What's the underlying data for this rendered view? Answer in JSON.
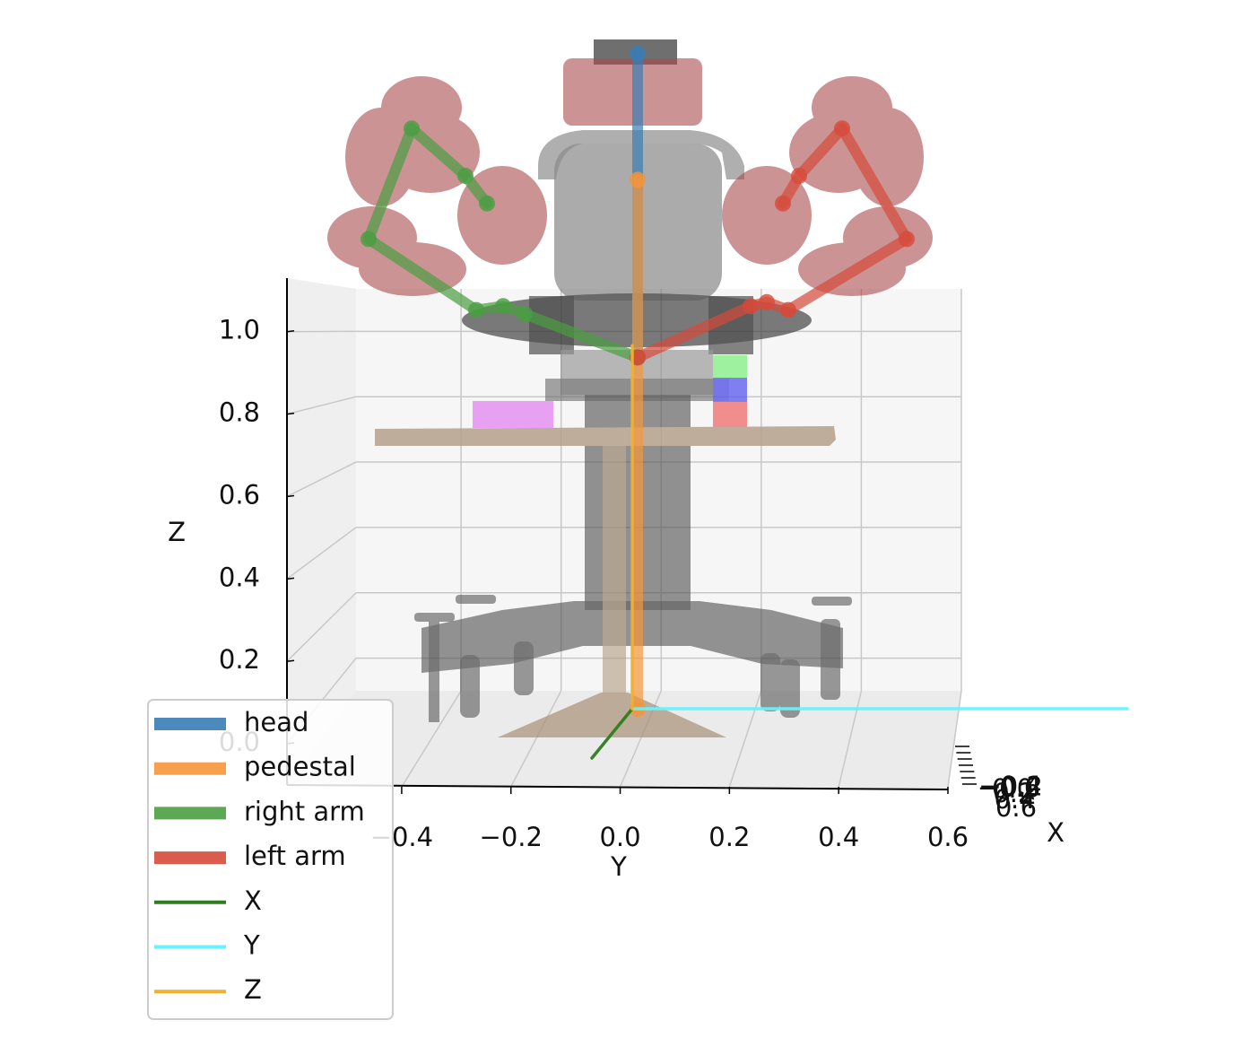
{
  "chart_data": {
    "type": "line3d",
    "xlabel": "X",
    "ylabel": "Y",
    "zlabel": "Z",
    "xlim": [
      -0.6,
      0.6
    ],
    "ylim": [
      -0.61,
      0.6
    ],
    "zlim": [
      -0.1,
      1.13
    ],
    "xticks": [
      {
        "value": -0.6,
        "label": "−0.6"
      },
      {
        "value": -0.4,
        "label": "−0.4"
      },
      {
        "value": -0.2,
        "label": "−0.2"
      },
      {
        "value": 0,
        "label": "0.0"
      },
      0.2,
      0.4,
      0.6
    ],
    "yticks": [
      {
        "value": -0.4,
        "label": "−0.4"
      },
      {
        "value": -0.2,
        "label": "−0.2"
      },
      {
        "value": 0,
        "label": "0.0"
      },
      0.2,
      0.4,
      0.6
    ],
    "zticks": [
      {
        "value": 0,
        "label": "0.0"
      },
      0.2,
      0.4,
      0.6,
      0.8,
      {
        "value": 1,
        "label": "1.0"
      }
    ],
    "grid": true,
    "legend": "lower left",
    "series": [
      {
        "name": "head",
        "color": "#3a7db5",
        "y": [
          0.01,
          0.01
        ],
        "z": [
          0.89,
          1.66
        ]
      },
      {
        "name": "pedestal",
        "color": "#f5953a",
        "y": [
          0.01,
          0.01
        ],
        "z": [
          0,
          1.34
        ]
      },
      {
        "name": "right arm",
        "color": "#4a9e42",
        "y": [
          0.01,
          -0.2,
          -0.24,
          -0.29,
          -0.49,
          -0.41,
          -0.31,
          -0.27
        ],
        "z": [
          0.89,
          1.0,
          1.02,
          1.01,
          1.19,
          1.47,
          1.35,
          1.28
        ]
      },
      {
        "name": "left arm",
        "color": "#d64a3a",
        "y": [
          0.01,
          0.22,
          0.25,
          0.29,
          0.51,
          0.39,
          0.31,
          0.28
        ],
        "z": [
          0.89,
          1.02,
          1.03,
          1.01,
          1.19,
          1.47,
          1.35,
          1.28
        ]
      },
      {
        "name": "X",
        "color": "#2e7d1e",
        "x": [
          0,
          1
        ],
        "y": [
          0,
          0
        ],
        "z": [
          0,
          0
        ]
      },
      {
        "name": "Y",
        "color": "#66f2ff",
        "x": [
          0,
          0
        ],
        "y": [
          0,
          0.92
        ],
        "z": [
          0,
          0
        ]
      },
      {
        "name": "Z",
        "color": "#f0b030",
        "x": [
          0,
          0
        ],
        "y": [
          0,
          0
        ],
        "z": [
          0,
          0.92
        ]
      }
    ]
  }
}
